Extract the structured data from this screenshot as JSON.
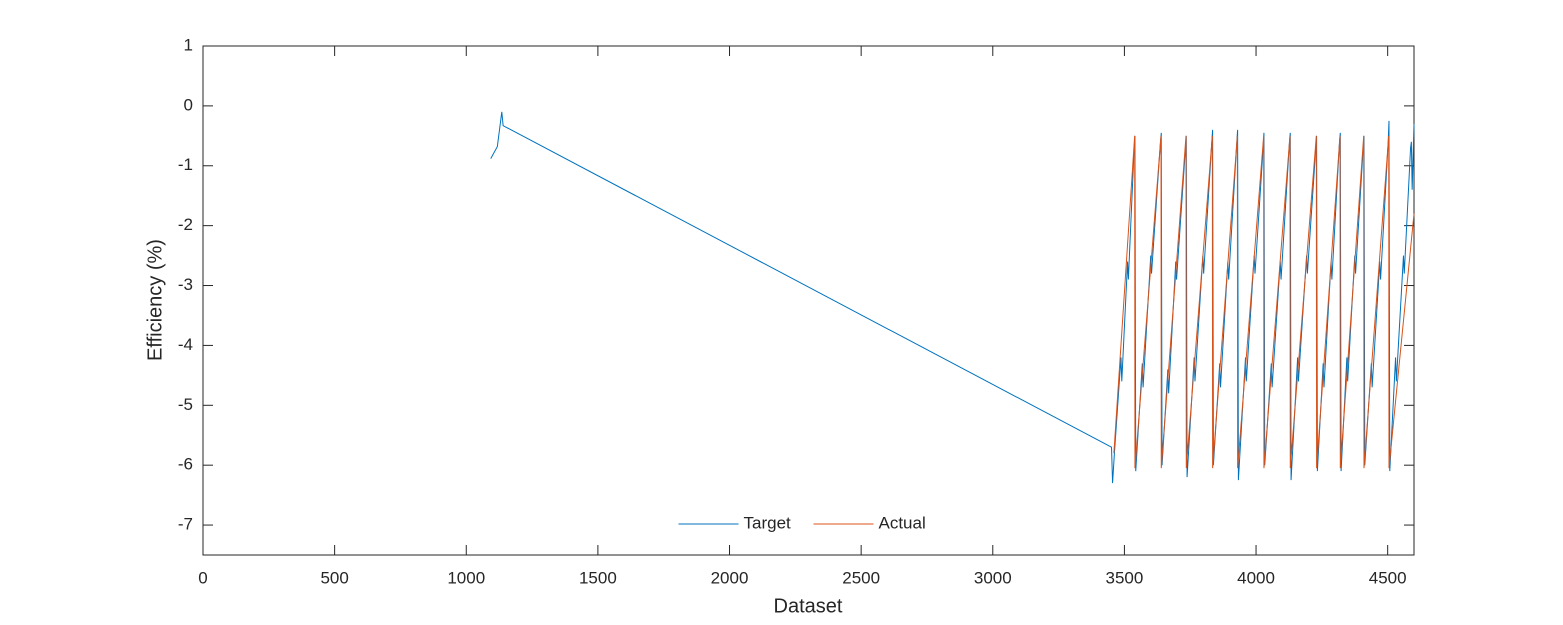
{
  "chart_data": {
    "type": "line",
    "xlabel": "Dataset",
    "ylabel": "Efficiency (%)",
    "xlim": [
      0,
      4600
    ],
    "ylim": [
      -7.5,
      1
    ],
    "xticks": [
      0,
      500,
      1000,
      1500,
      2000,
      2500,
      3000,
      3500,
      4000,
      4500
    ],
    "yticks": [
      -7,
      -6,
      -5,
      -4,
      -3,
      -2,
      -1,
      0,
      1
    ],
    "grid": false,
    "legend": "lower center",
    "series": [
      {
        "name": "Target",
        "color": "#0072bd",
        "x": [
          1093,
          1118,
          1135,
          1140,
          3451,
          3455,
          3462,
          3487,
          3490,
          3512,
          3515,
          3537,
          3540,
          3543,
          3568,
          3571,
          3600,
          3603,
          3637,
          3640,
          3643,
          3665,
          3668,
          3695,
          3698,
          3732,
          3735,
          3738,
          3765,
          3768,
          3798,
          3801,
          3832,
          3835,
          3838,
          3862,
          3865,
          3893,
          3896,
          3927,
          3930,
          3933,
          3960,
          3963,
          3993,
          3996,
          4027,
          4030,
          4033,
          4058,
          4061,
          4092,
          4095,
          4127,
          4130,
          4133,
          4158,
          4161,
          4192,
          4195,
          4227,
          4230,
          4233,
          4255,
          4258,
          4285,
          4288,
          4317,
          4320,
          4323,
          4345,
          4348,
          4375,
          4378,
          4407,
          4410,
          4413,
          4438,
          4441,
          4470,
          4473,
          4502,
          4505,
          4508,
          4530,
          4533,
          4560,
          4563,
          4587,
          4590,
          4593,
          4600
        ],
        "values": [
          -0.88,
          -0.68,
          -0.1,
          -0.33,
          -5.7,
          -6.3,
          -5.8,
          -4.2,
          -4.6,
          -2.6,
          -2.9,
          -0.7,
          -0.5,
          -6.1,
          -4.3,
          -4.7,
          -2.5,
          -2.8,
          -0.6,
          -0.45,
          -6.0,
          -4.4,
          -4.8,
          -2.6,
          -2.9,
          -0.7,
          -0.5,
          -6.2,
          -4.2,
          -4.6,
          -2.5,
          -2.8,
          -0.6,
          -0.4,
          -6.0,
          -4.3,
          -4.7,
          -2.6,
          -2.9,
          -0.6,
          -0.4,
          -6.25,
          -4.2,
          -4.6,
          -2.5,
          -2.8,
          -0.7,
          -0.45,
          -6.0,
          -4.3,
          -4.7,
          -2.6,
          -2.9,
          -0.6,
          -0.45,
          -6.25,
          -4.2,
          -4.6,
          -2.5,
          -2.8,
          -0.7,
          -0.5,
          -6.1,
          -4.3,
          -4.7,
          -2.6,
          -2.9,
          -0.6,
          -0.45,
          -6.1,
          -4.2,
          -4.6,
          -2.5,
          -2.8,
          -0.7,
          -0.5,
          -6.0,
          -4.3,
          -4.7,
          -2.6,
          -2.9,
          -0.6,
          -0.25,
          -6.1,
          -4.2,
          -4.6,
          -2.5,
          -2.8,
          -0.7,
          -0.6,
          -1.4,
          -0.3
        ]
      },
      {
        "name": "Actual",
        "color": "#d95319",
        "x": [
          3460,
          3539,
          3540,
          3639,
          3640,
          3734,
          3735,
          3834,
          3835,
          3929,
          3930,
          4029,
          4030,
          4129,
          4130,
          4229,
          4230,
          4319,
          4320,
          4409,
          4410,
          4504,
          4505,
          4600
        ],
        "values": [
          -5.8,
          -0.5,
          -6.05,
          -0.5,
          -6.05,
          -0.5,
          -6.05,
          -0.5,
          -6.05,
          -0.5,
          -6.05,
          -0.5,
          -6.05,
          -0.5,
          -6.05,
          -0.5,
          -6.05,
          -0.5,
          -6.05,
          -0.5,
          -6.05,
          -0.5,
          -6.05,
          -1.8
        ]
      }
    ]
  }
}
